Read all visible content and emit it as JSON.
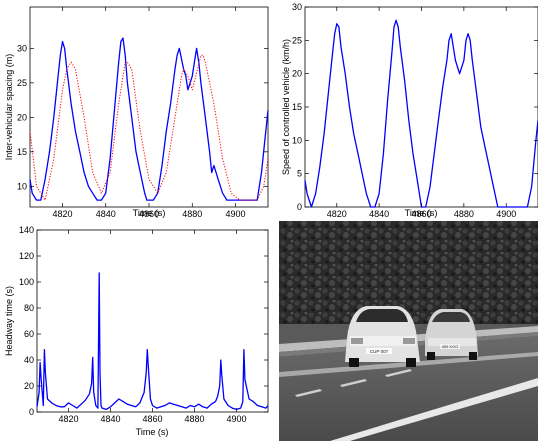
{
  "chart_data": [
    {
      "type": "line",
      "xlabel": "Time (s)",
      "ylabel": "Inter-vehicular spacing (m)",
      "xlim": [
        4805,
        4915
      ],
      "ylim": [
        7,
        36
      ],
      "xticks": [
        4820,
        4840,
        4860,
        4880,
        4900
      ],
      "yticks": [
        10,
        15,
        20,
        25,
        30
      ],
      "grid": false,
      "series": [
        {
          "style": "solid",
          "color": "#0000ff",
          "x": [
            4805,
            4806,
            4808,
            4810,
            4812,
            4814,
            4816,
            4818,
            4819,
            4820,
            4821,
            4822,
            4824,
            4826,
            4828,
            4830,
            4831,
            4832,
            4834,
            4836,
            4838,
            4840,
            4842,
            4844,
            4846,
            4847,
            4848,
            4849,
            4850,
            4852,
            4854,
            4856,
            4858,
            4859,
            4860,
            4862,
            4864,
            4866,
            4868,
            4870,
            4872,
            4873,
            4874,
            4876,
            4877,
            4878,
            4880,
            4881,
            4882,
            4883,
            4884,
            4886,
            4888,
            4889,
            4890,
            4892,
            4894,
            4896,
            4898,
            4900,
            4902,
            4904,
            4906,
            4908,
            4910,
            4912,
            4914,
            4915
          ],
          "y": [
            11,
            9,
            8,
            8,
            11,
            15,
            20,
            26,
            29,
            31,
            30,
            27,
            22,
            18,
            15,
            12,
            11,
            10,
            9,
            8,
            8,
            9,
            14,
            21,
            28,
            31,
            31.5,
            29,
            25,
            20,
            15,
            12,
            9,
            8,
            8,
            8,
            9,
            13,
            18,
            22,
            27,
            29,
            30,
            27,
            26,
            24,
            26,
            28,
            30,
            28,
            25,
            20,
            15,
            12,
            13,
            11,
            9,
            8,
            8,
            8,
            8,
            8,
            8,
            8,
            8,
            12,
            18,
            21
          ]
        },
        {
          "style": "dotted",
          "color": "#ff0000",
          "x": [
            4805,
            4808,
            4812,
            4816,
            4820,
            4822,
            4824,
            4826,
            4830,
            4834,
            4838,
            4842,
            4846,
            4849,
            4850,
            4852,
            4856,
            4860,
            4864,
            4868,
            4872,
            4875,
            4876,
            4878,
            4880,
            4884,
            4885,
            4886,
            4890,
            4894,
            4898,
            4902,
            4906,
            4910,
            4913,
            4915
          ],
          "y": [
            18,
            10,
            8,
            14,
            24,
            27,
            28,
            27,
            20,
            12,
            9,
            12,
            22,
            28,
            28,
            27,
            18,
            11,
            9,
            12,
            20,
            26,
            27,
            26,
            24,
            29,
            29,
            28,
            22,
            14,
            9,
            8,
            8,
            8,
            10,
            14
          ]
        }
      ]
    },
    {
      "type": "line",
      "xlabel": "Time (s)",
      "ylabel": "Speed of controlled vehicle (km/h)",
      "xlim": [
        4805,
        4915
      ],
      "ylim": [
        0,
        30
      ],
      "xticks": [
        4820,
        4840,
        4860,
        4880,
        4900
      ],
      "yticks": [
        0,
        5,
        10,
        15,
        20,
        25,
        30
      ],
      "grid": false,
      "series": [
        {
          "style": "solid",
          "color": "#0000ff",
          "x": [
            4805,
            4806,
            4808,
            4810,
            4812,
            4814,
            4816,
            4818,
            4819,
            4820,
            4821,
            4822,
            4824,
            4826,
            4828,
            4830,
            4832,
            4834,
            4836,
            4838,
            4840,
            4842,
            4844,
            4846,
            4847,
            4848,
            4849,
            4850,
            4852,
            4854,
            4856,
            4858,
            4860,
            4862,
            4864,
            4866,
            4868,
            4870,
            4872,
            4873,
            4874,
            4876,
            4877,
            4878,
            4880,
            4881,
            4882,
            4883,
            4884,
            4886,
            4888,
            4890,
            4892,
            4894,
            4896,
            4898,
            4900,
            4902,
            4904,
            4906,
            4908,
            4910,
            4912,
            4914,
            4915
          ],
          "y": [
            4,
            2,
            0,
            2,
            6,
            11,
            17,
            23,
            26,
            27.5,
            27,
            24,
            20,
            15,
            11,
            8,
            5,
            2,
            0,
            0,
            2,
            8,
            16,
            23,
            27,
            28,
            27,
            24,
            19,
            13,
            8,
            4,
            0,
            0,
            3,
            8,
            13,
            18,
            22,
            25,
            26,
            22,
            21,
            20,
            22,
            25,
            26,
            25,
            22,
            17,
            12,
            9,
            6,
            3,
            0,
            0,
            0,
            0,
            0,
            0,
            0,
            0,
            3,
            10,
            13
          ]
        }
      ]
    },
    {
      "type": "line",
      "xlabel": "Time (s)",
      "ylabel": "Headway time (s)",
      "xlim": [
        4805,
        4915
      ],
      "ylim": [
        0,
        140
      ],
      "xticks": [
        4820,
        4840,
        4860,
        4880,
        4900
      ],
      "yticks": [
        0,
        20,
        40,
        60,
        80,
        100,
        120,
        140
      ],
      "grid": false,
      "series": [
        {
          "style": "solid",
          "color": "#0000ff",
          "x": [
            4805,
            4806,
            4806.5,
            4807,
            4808,
            4808.5,
            4809,
            4810,
            4812,
            4814,
            4816,
            4818,
            4820,
            4822,
            4824,
            4826,
            4828,
            4830,
            4831,
            4831.5,
            4832,
            4833,
            4834,
            4834.6,
            4835,
            4835.5,
            4836,
            4838,
            4840,
            4842,
            4844,
            4846,
            4848,
            4850,
            4852,
            4854,
            4856,
            4857,
            4857.5,
            4858,
            4859,
            4860,
            4862,
            4864,
            4866,
            4868,
            4870,
            4872,
            4874,
            4876,
            4878,
            4880,
            4882,
            4884,
            4886,
            4888,
            4890,
            4891,
            4892,
            4892.5,
            4893,
            4894,
            4896,
            4898,
            4900,
            4902,
            4903,
            4903.5,
            4904,
            4906,
            4908,
            4910,
            4912,
            4914,
            4915
          ],
          "y": [
            4,
            15,
            38,
            25,
            5,
            48,
            30,
            10,
            7,
            5,
            4,
            4,
            7,
            5,
            3,
            6,
            9,
            14,
            22,
            42,
            15,
            5,
            3,
            107,
            30,
            5,
            3,
            2,
            4,
            7,
            10,
            8,
            6,
            5,
            4,
            7,
            15,
            30,
            48,
            35,
            10,
            5,
            3,
            4,
            5,
            7,
            6,
            5,
            4,
            3,
            5,
            4,
            6,
            4,
            3,
            6,
            8,
            12,
            20,
            40,
            28,
            10,
            5,
            3,
            2,
            3,
            8,
            48,
            25,
            10,
            8,
            5,
            4,
            3,
            5
          ]
        }
      ]
    }
  ],
  "photo": {
    "description": "camera-view",
    "plate_left": "CUP 007",
    "plate_right": "459 KGG"
  }
}
